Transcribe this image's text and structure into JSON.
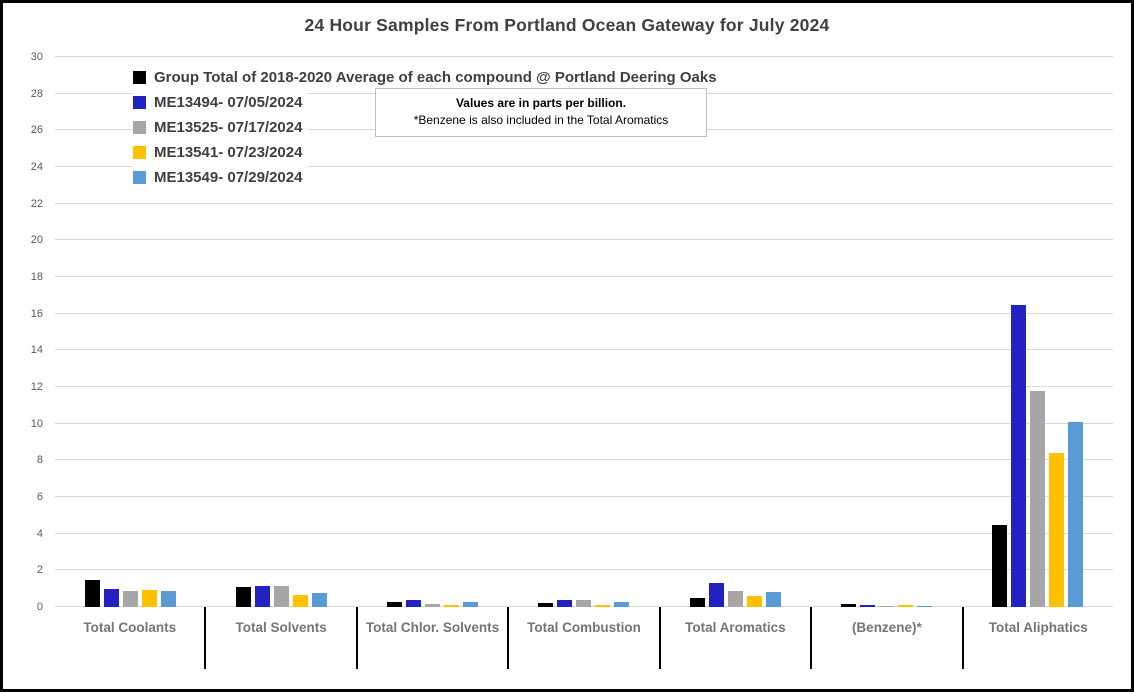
{
  "chart_data": {
    "type": "bar",
    "title": "24 Hour Samples From Portland Ocean Gateway for July 2024",
    "categories": [
      "Total Coolants",
      "Total Solvents",
      "Total Chlor. Solvents",
      "Total Combustion",
      "Total Aromatics",
      "(Benzene)*",
      "Total Aliphatics"
    ],
    "series": [
      {
        "name": "Group Total of 2018-2020 Average of each compound @ Portland Deering Oaks",
        "color": "#000000",
        "values": [
          1.5,
          1.1,
          0.3,
          0.22,
          0.5,
          0.15,
          4.45
        ]
      },
      {
        "name": "ME13494- 07/05/2024",
        "color": "#2222C2",
        "values": [
          1.0,
          1.15,
          0.4,
          0.4,
          1.3,
          0.12,
          16.5
        ]
      },
      {
        "name": "ME13525- 07/17/2024",
        "color": "#A6A6A6",
        "values": [
          0.9,
          1.15,
          0.15,
          0.4,
          0.9,
          0.06,
          11.8
        ]
      },
      {
        "name": "ME13541- 07/23/2024",
        "color": "#FFC000",
        "values": [
          0.92,
          0.65,
          0.13,
          0.13,
          0.6,
          0.1,
          8.4
        ]
      },
      {
        "name": "ME13549- 07/29/2024",
        "color": "#5B9BD5",
        "values": [
          0.9,
          0.75,
          0.25,
          0.25,
          0.8,
          0.08,
          10.1
        ]
      }
    ],
    "ylabel": "",
    "xlabel": "",
    "ylim": [
      0,
      30
    ],
    "ytick_step": 2,
    "grid": true,
    "legend_position": "top-left",
    "annotation": {
      "line1": "Values are in parts per billion.",
      "line2": "*Benzene is also included in the Total Aromatics"
    },
    "colors": {
      "gridline": "#d9d9d9",
      "axis_label": "#595959",
      "category_label": "#757575",
      "title": "#404040",
      "frame_border": "#000000"
    }
  }
}
